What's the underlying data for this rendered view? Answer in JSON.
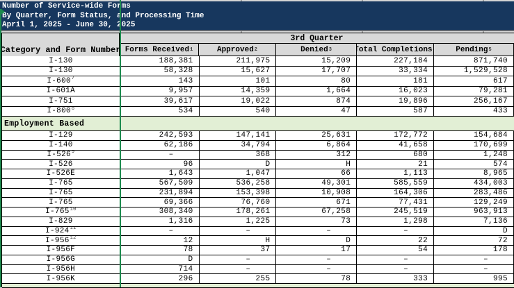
{
  "title": {
    "line1": "Number of Service-wide Forms",
    "line2": "By Quarter, Form Status, and Processing Time",
    "line3": "April 1, 2025 - June 30, 2025"
  },
  "table": {
    "quarter_header": "3rd Quarter",
    "category_header": "Category and Form Number",
    "columns": [
      {
        "label": "Forms Received",
        "sup": "1"
      },
      {
        "label": "Approved",
        "sup": "2"
      },
      {
        "label": "Denied",
        "sup": "3"
      },
      {
        "label": "Total Completions",
        "sup": "4"
      },
      {
        "label": "Pending",
        "sup": "5"
      }
    ],
    "rows": [
      {
        "form": "I-130",
        "sup": "",
        "values": [
          "188,381",
          "211,975",
          "15,209",
          "227,184",
          "871,740"
        ]
      },
      {
        "form": "I-130",
        "sup": "",
        "values": [
          "58,328",
          "15,627",
          "17,707",
          "33,334",
          "1,529,528"
        ]
      },
      {
        "form": "I-600",
        "sup": "7",
        "values": [
          "143",
          "101",
          "80",
          "181",
          "617"
        ]
      },
      {
        "form": "I-601A",
        "sup": "",
        "values": [
          "9,957",
          "14,359",
          "1,664",
          "16,023",
          "79,281"
        ]
      },
      {
        "form": "I-751",
        "sup": "",
        "values": [
          "39,617",
          "19,022",
          "874",
          "19,896",
          "256,167"
        ]
      },
      {
        "form": "I-800",
        "sup": "8",
        "values": [
          "534",
          "540",
          "47",
          "587",
          "433"
        ]
      },
      {
        "section": "Employment Based"
      },
      {
        "form": "I-129",
        "sup": "",
        "values": [
          "242,593",
          "147,141",
          "25,631",
          "172,772",
          "154,684"
        ]
      },
      {
        "form": "I-140",
        "sup": "",
        "values": [
          "62,186",
          "34,794",
          "6,864",
          "41,658",
          "170,699"
        ]
      },
      {
        "form": "I-526",
        "sup": "9",
        "values": [
          "–",
          "368",
          "312",
          "680",
          "1,248"
        ]
      },
      {
        "form": "I-526",
        "sup": "",
        "values": [
          "96",
          "D",
          "H",
          "21",
          "574"
        ]
      },
      {
        "form": "I-526E",
        "sup": "",
        "values": [
          "1,643",
          "1,047",
          "66",
          "1,113",
          "8,965"
        ]
      },
      {
        "form": "I-765",
        "sup": "",
        "values": [
          "567,509",
          "536,258",
          "49,301",
          "585,559",
          "434,003"
        ]
      },
      {
        "form": "I-765",
        "sup": "",
        "values": [
          "231,894",
          "153,398",
          "10,908",
          "164,306",
          "283,486"
        ]
      },
      {
        "form": "I-765",
        "sup": "",
        "values": [
          "69,366",
          "76,760",
          "671",
          "77,431",
          "129,249"
        ]
      },
      {
        "form": "I-765",
        "sup": "10",
        "values": [
          "308,340",
          "178,261",
          "67,258",
          "245,519",
          "963,913"
        ]
      },
      {
        "form": "I-829",
        "sup": "",
        "values": [
          "1,316",
          "1,225",
          "73",
          "1,298",
          "7,136"
        ]
      },
      {
        "form": "I-924",
        "sup": "11",
        "values": [
          "–",
          "–",
          "–",
          "–",
          "D"
        ]
      },
      {
        "form": "I-956",
        "sup": "12",
        "values": [
          "12",
          "H",
          "D",
          "22",
          "72"
        ]
      },
      {
        "form": "I-956F",
        "sup": "",
        "values": [
          "78",
          "37",
          "17",
          "54",
          "178"
        ]
      },
      {
        "form": "I-956G",
        "sup": "",
        "values": [
          "D",
          "–",
          "–",
          "–",
          "–"
        ]
      },
      {
        "form": "I-956H",
        "sup": "",
        "values": [
          "714",
          "–",
          "–",
          "–",
          "–"
        ]
      },
      {
        "form": "I-956K",
        "sup": "",
        "values": [
          "296",
          "255",
          "78",
          "333",
          "995"
        ]
      },
      {
        "section": ""
      }
    ]
  },
  "colors": {
    "title_band_bg": "#17375e",
    "header_bg": "#d9d9d9",
    "section_row_bg": "#e2efd5",
    "selection_green": "#1c8a4e",
    "grid_border": "#000000"
  }
}
